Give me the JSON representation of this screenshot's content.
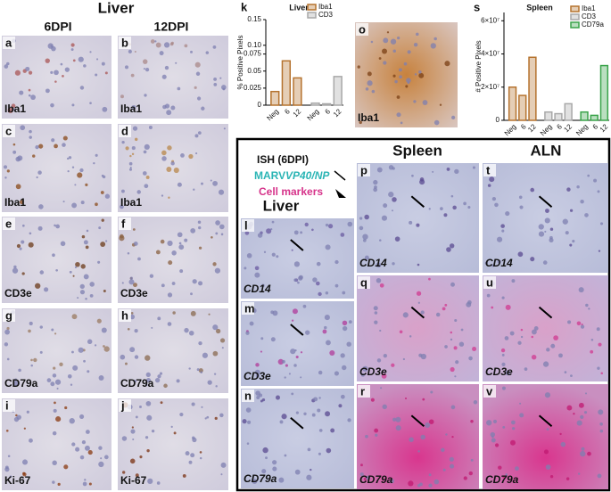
{
  "figure": {
    "title": "Liver",
    "columns": [
      "6DPI",
      "12DPI"
    ]
  },
  "panels": [
    {
      "letter": "a",
      "stain": "Iba1"
    },
    {
      "letter": "b",
      "stain": "Iba1"
    },
    {
      "letter": "c",
      "stain": "Iba1"
    },
    {
      "letter": "d",
      "stain": "Iba1"
    },
    {
      "letter": "e",
      "stain": "CD3e"
    },
    {
      "letter": "f",
      "stain": "CD3e"
    },
    {
      "letter": "g",
      "stain": "CD79a"
    },
    {
      "letter": "h",
      "stain": "CD79a"
    },
    {
      "letter": "i",
      "stain": "Ki-67"
    },
    {
      "letter": "j",
      "stain": "Ki-67"
    },
    {
      "letter": "o",
      "stain": "Iba1"
    },
    {
      "letter": "l",
      "stain": "CD14"
    },
    {
      "letter": "m",
      "stain": "CD3e"
    },
    {
      "letter": "n",
      "stain": "CD79a"
    },
    {
      "letter": "p",
      "stain": "CD14"
    },
    {
      "letter": "q",
      "stain": "CD3e"
    },
    {
      "letter": "r",
      "stain": "CD79a"
    },
    {
      "letter": "t",
      "stain": "CD14"
    },
    {
      "letter": "u",
      "stain": "CD3e"
    },
    {
      "letter": "v",
      "stain": "CD79a"
    }
  ],
  "ish": {
    "legend_title": "ISH (6DPI)",
    "marv": "MARV",
    "marv_genes": "VP40/NP",
    "cell_markers": "Cell markers",
    "liver": "Liver",
    "spleen": "Spleen",
    "aln": "ALN"
  },
  "chart_data": [
    {
      "type": "bar",
      "letter": "k",
      "title": "Liver",
      "y_label": "% Positive Pixels",
      "categories": [
        "Neg",
        "6",
        "12",
        "Neg",
        "6",
        "12"
      ],
      "series": [
        {
          "name": "Iba1",
          "color": "#b5732f",
          "values": [
            0.02,
            0.065,
            0.04,
            null,
            null,
            null
          ]
        },
        {
          "name": "CD3",
          "color": "#a8a8a8",
          "values": [
            null,
            null,
            null,
            0.003,
            0.002,
            0.042
          ]
        }
      ],
      "ylim": [
        0,
        0.15
      ],
      "y_break": [
        0.08,
        0.1
      ],
      "yticks": [
        0,
        0.025,
        0.05,
        0.075,
        {
          "value": 0.1,
          "label": "0.10"
        },
        0.15
      ]
    },
    {
      "type": "bar",
      "letter": "s",
      "title": "Spleen",
      "y_label": "# Positive Pixels",
      "categories": [
        "Neg",
        "6",
        "12",
        "Neg",
        "6",
        "12",
        "Neg",
        "6",
        "12"
      ],
      "series": [
        {
          "name": "Iba1",
          "color": "#b5732f",
          "values": [
            20000000,
            15000000,
            38000000,
            null,
            null,
            null,
            null,
            null,
            null
          ]
        },
        {
          "name": "CD3",
          "color": "#a8a8a8",
          "values": [
            null,
            null,
            null,
            5000000,
            4000000,
            10000000,
            null,
            null,
            null
          ]
        },
        {
          "name": "CD79a",
          "color": "#3aa34a",
          "values": [
            null,
            null,
            null,
            null,
            null,
            null,
            5000000,
            3000000,
            33000000
          ]
        }
      ],
      "ylim": [
        0,
        65000000
      ],
      "yticks": [
        0,
        {
          "value": 20000000,
          "label": "2×10⁷"
        },
        {
          "value": 40000000,
          "label": "4×10⁷"
        },
        {
          "value": 60000000,
          "label": "6×10⁷"
        }
      ]
    }
  ]
}
